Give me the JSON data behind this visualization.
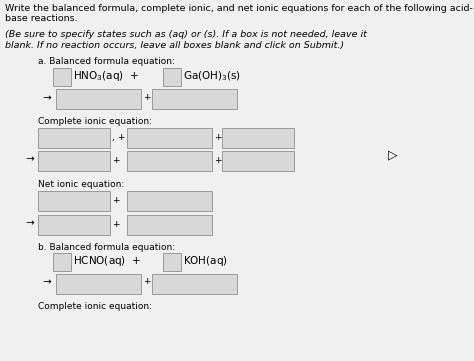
{
  "bg_color": "#f0f0f0",
  "title_line1": "Write the balanced formula, complete ionic, and net ionic equations for each of the following acid-",
  "title_line2": "base reactions.",
  "italic_line1": "(Be sure to specify states such as (aq) or (s). If a box is not needed, leave it",
  "italic_line2": "blank. If no reaction occurs, leave all boxes blank and click on Submit.)",
  "section_a_label": "a. Balanced formula equation:",
  "section_complete": "Complete ionic equation:",
  "section_net": "Net ionic equation:",
  "section_b_label": "b. Balanced formula equation:",
  "section_b_complete": "Complete ionic equation:",
  "box_color": "#d8d8d8",
  "box_edge": "#999999",
  "font_size_title": 6.8,
  "font_size_italic": 6.8,
  "font_size_section": 6.5,
  "font_size_formula": 7.5,
  "font_size_small": 6.0,
  "plus_sign": "+",
  "arrow": "→"
}
